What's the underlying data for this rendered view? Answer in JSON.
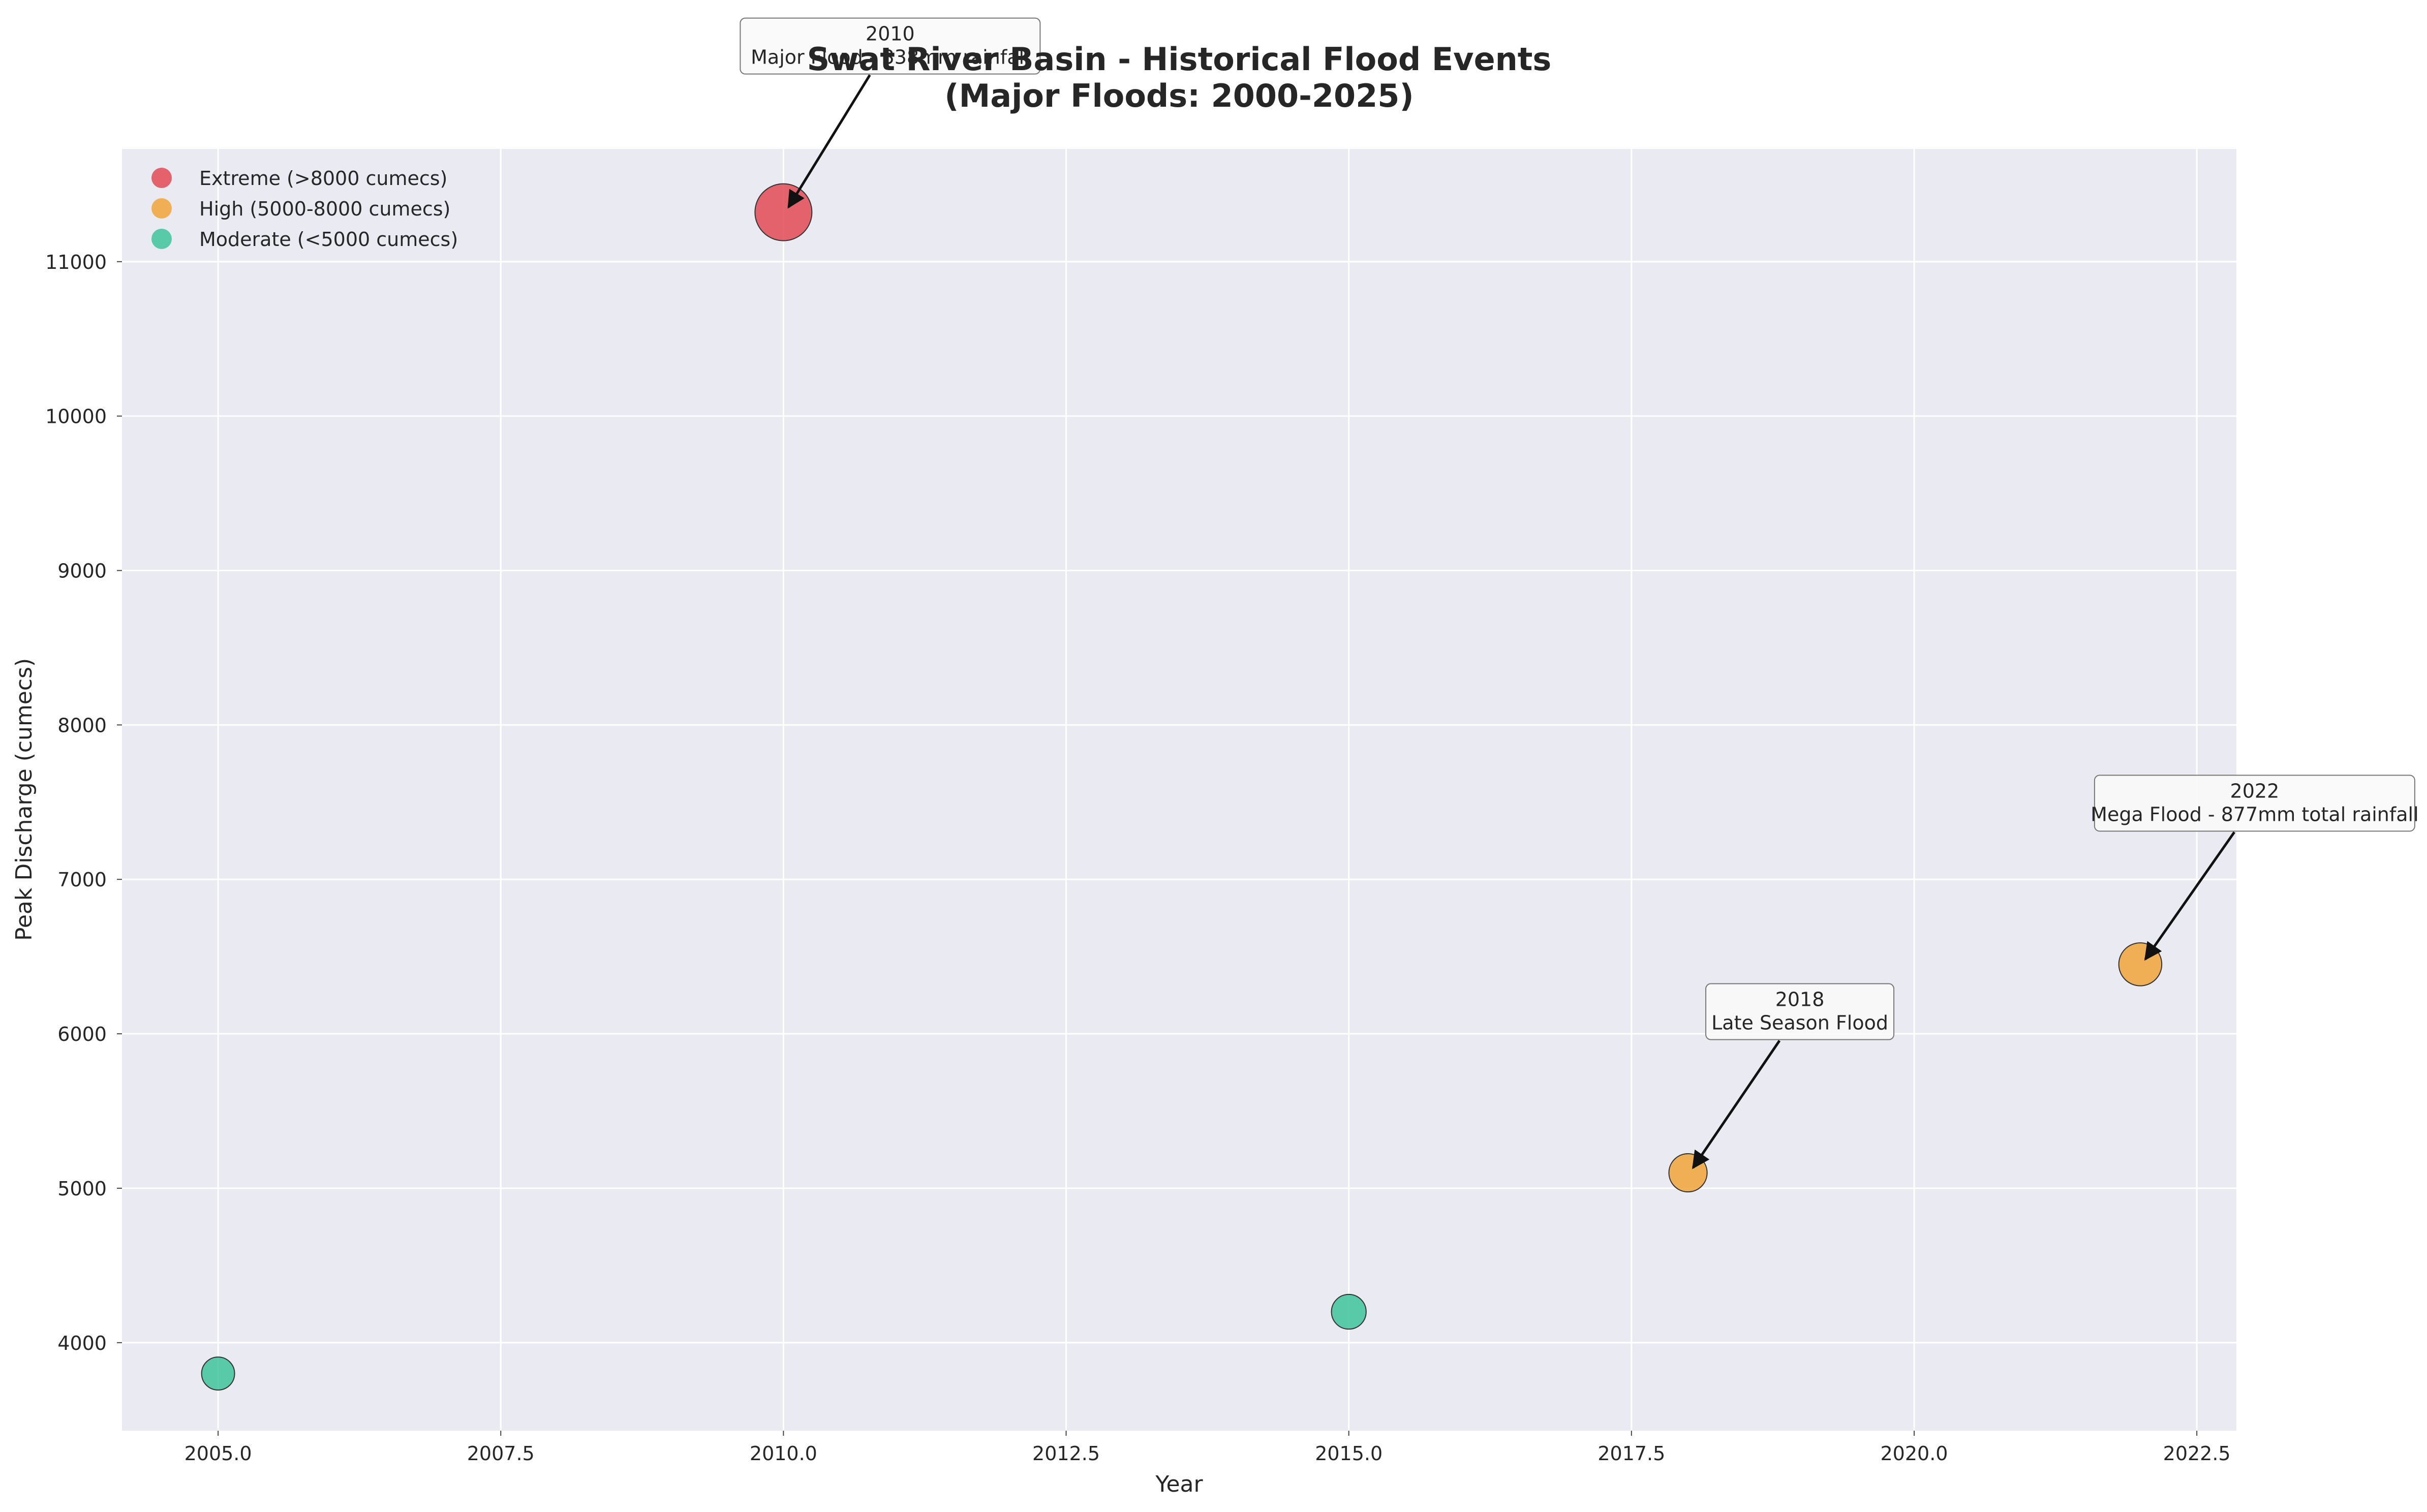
{
  "chart_data": {
    "type": "scatter",
    "title": "Swat River Basin - Historical Flood Events",
    "subtitle": "(Major Floods: 2000-2025)",
    "xlabel": "Year",
    "ylabel": "Peak Discharge (cumecs)",
    "xlim": [
      2004.15,
      2022.85
    ],
    "ylim": [
      3430,
      11730
    ],
    "x_ticks": [
      "2005.0",
      "2007.5",
      "2010.0",
      "2012.5",
      "2015.0",
      "2017.5",
      "2020.0",
      "2022.5"
    ],
    "x_tick_values": [
      2005,
      2007.5,
      2010,
      2012.5,
      2015,
      2017.5,
      2020,
      2022.5
    ],
    "y_ticks": [
      "4000",
      "5000",
      "6000",
      "7000",
      "8000",
      "9000",
      "10000",
      "11000"
    ],
    "y_tick_values": [
      4000,
      5000,
      6000,
      7000,
      8000,
      9000,
      10000,
      11000
    ],
    "grid": true,
    "legend_position": "top-left",
    "series": [
      {
        "name": "Extreme (>8000 cumecs)",
        "color": "#e24a55",
        "points": [
          {
            "x": 2010,
            "y": 11320
          }
        ]
      },
      {
        "name": "High (5000-8000 cumecs)",
        "color": "#f2a53a",
        "points": [
          {
            "x": 2018,
            "y": 5100
          },
          {
            "x": 2022,
            "y": 6450
          }
        ]
      },
      {
        "name": "Moderate (<5000 cumecs)",
        "color": "#3ec49a",
        "points": [
          {
            "x": 2005,
            "y": 3800
          },
          {
            "x": 2015,
            "y": 4200
          }
        ]
      }
    ],
    "annotations": [
      {
        "x": 2010,
        "y": 11320,
        "line1": "2010",
        "line2": "Major Flood - 338mm rainfall"
      },
      {
        "x": 2018,
        "y": 5100,
        "line1": "2018",
        "line2": "Late Season Flood"
      },
      {
        "x": 2022,
        "y": 6450,
        "line1": "2022",
        "line2": "Mega Flood - 877mm total rainfall"
      }
    ]
  }
}
